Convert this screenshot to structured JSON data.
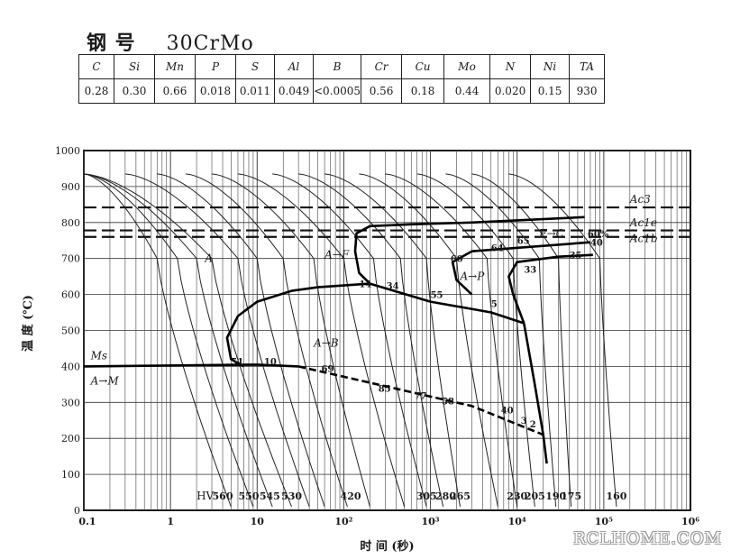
{
  "heading": {
    "label": "钢 号",
    "grade": "30CrMo"
  },
  "composition": {
    "headers": [
      "C",
      "Si",
      "Mn",
      "P",
      "S",
      "Al",
      "B",
      "Cr",
      "Cu",
      "Mo",
      "N",
      "Ni",
      "TA"
    ],
    "values": [
      "0.28",
      "0.30",
      "0.66",
      "0.018",
      "0.011",
      "0.049",
      "<0.0005",
      "0.56",
      "0.18",
      "0.44",
      "0.020",
      "0.15",
      "930"
    ]
  },
  "chart_data": {
    "type": "line",
    "xlabel": "时 间 (秒)",
    "ylabel": "温 度 (℃)",
    "x_scale": "log",
    "xlim": [
      0.1,
      1000000
    ],
    "ylim": [
      0,
      1000
    ],
    "x_tick_labels": [
      "0.1",
      "1",
      "10",
      "10²",
      "10³",
      "10⁴",
      "10⁵",
      "10⁶"
    ],
    "x_tick_values": [
      0.1,
      1,
      10,
      100,
      1000,
      10000,
      100000,
      1000000
    ],
    "y_ticks": [
      0,
      100,
      200,
      300,
      400,
      500,
      600,
      700,
      800,
      900,
      1000
    ],
    "grid": true,
    "critical_lines": [
      {
        "name": "Ac3",
        "y": 842
      },
      {
        "name": "Ac1e",
        "y": 778
      },
      {
        "name": "Ac1b",
        "y": 760
      }
    ],
    "ms_temperature": 400,
    "transformation_curves": [
      {
        "name": "ferrite start",
        "points": [
          [
            60000,
            815
          ],
          [
            3000,
            800
          ],
          [
            600,
            795
          ],
          [
            200,
            790
          ],
          [
            140,
            770
          ],
          [
            135,
            720
          ],
          [
            150,
            660
          ],
          [
            200,
            630
          ]
        ]
      },
      {
        "name": "pearlite start",
        "points": [
          [
            70000,
            745
          ],
          [
            3000,
            720
          ],
          [
            1800,
            690
          ],
          [
            2000,
            640
          ],
          [
            3000,
            600
          ]
        ]
      },
      {
        "name": "pearlite finish",
        "points": [
          [
            75000,
            710
          ],
          [
            30000,
            705
          ],
          [
            10000,
            690
          ],
          [
            8000,
            650
          ],
          [
            9000,
            600
          ],
          [
            12000,
            520
          ]
        ]
      },
      {
        "name": "bainite start",
        "points": [
          [
            200,
            630
          ],
          [
            100,
            625
          ],
          [
            50,
            620
          ],
          [
            25,
            610
          ],
          [
            10,
            580
          ],
          [
            6,
            540
          ],
          [
            4.5,
            480
          ],
          [
            5,
            420
          ],
          [
            7,
            400
          ]
        ]
      },
      {
        "name": "ferrite finish",
        "points": [
          [
            200,
            630
          ],
          [
            1000,
            580
          ],
          [
            5000,
            550
          ],
          [
            12000,
            520
          ]
        ]
      },
      {
        "name": "martensite start (Ms)",
        "points": [
          [
            0.1,
            400
          ],
          [
            10,
            405
          ],
          [
            30,
            400
          ]
        ]
      },
      {
        "name": "bainite finish",
        "points": [
          [
            30,
            400
          ],
          [
            300,
            345
          ],
          [
            3000,
            290
          ],
          [
            20000,
            210
          ]
        ]
      },
      {
        "name": "end line",
        "points": [
          [
            12000,
            520
          ],
          [
            16000,
            350
          ],
          [
            20000,
            210
          ],
          [
            22000,
            130
          ]
        ]
      }
    ],
    "hardness_label": "HV",
    "hardness_values": [
      {
        "t": 4,
        "hv": "560"
      },
      {
        "t": 8,
        "hv": "550"
      },
      {
        "t": 14,
        "hv": "545"
      },
      {
        "t": 25,
        "hv": "530"
      },
      {
        "t": 120,
        "hv": "420"
      },
      {
        "t": 900,
        "hv": "305"
      },
      {
        "t": 1500,
        "hv": "280"
      },
      {
        "t": 2200,
        "hv": "265"
      },
      {
        "t": 10000,
        "hv": "230"
      },
      {
        "t": 16000,
        "hv": "205"
      },
      {
        "t": 28000,
        "hv": "190"
      },
      {
        "t": 42000,
        "hv": "175"
      },
      {
        "t": 140000,
        "hv": "160"
      }
    ],
    "region_labels": [
      {
        "text": "Ms",
        "t": 0.12,
        "temp": 420
      },
      {
        "text": "A→M",
        "t": 0.12,
        "temp": 350
      },
      {
        "text": "A",
        "t": 2.5,
        "temp": 690
      },
      {
        "text": "A→F",
        "t": 60,
        "temp": 700
      },
      {
        "text": "A→B",
        "t": 45,
        "temp": 455
      },
      {
        "text": "A→P",
        "t": 2200,
        "temp": 640
      },
      {
        "text": "F→C",
        "t": 18000,
        "temp": 760
      },
      {
        "text": "Ac3",
        "t": 200000,
        "temp": 855
      },
      {
        "text": "Ac1e",
        "t": 200000,
        "temp": 790
      },
      {
        "text": "Ac1b",
        "t": 200000,
        "temp": 745
      }
    ],
    "percentages": [
      {
        "text": "51",
        "t": 5,
        "temp": 405
      },
      {
        "text": "10",
        "t": 12,
        "temp": 405
      },
      {
        "text": "69",
        "t": 55,
        "temp": 385
      },
      {
        "text": "14",
        "t": 150,
        "temp": 620
      },
      {
        "text": "34",
        "t": 310,
        "temp": 615
      },
      {
        "text": "85",
        "t": 250,
        "temp": 330
      },
      {
        "text": "77",
        "t": 650,
        "temp": 310
      },
      {
        "text": "58",
        "t": 1350,
        "temp": 295
      },
      {
        "text": "55",
        "t": 1000,
        "temp": 590
      },
      {
        "text": "5",
        "t": 5000,
        "temp": 565
      },
      {
        "text": "60",
        "t": 1700,
        "temp": 690
      },
      {
        "text": "64",
        "t": 5000,
        "temp": 720
      },
      {
        "text": "65",
        "t": 10000,
        "temp": 740
      },
      {
        "text": "33",
        "t": 12000,
        "temp": 660
      },
      {
        "text": "35",
        "t": 40000,
        "temp": 700
      },
      {
        "text": "40",
        "t": 70000,
        "temp": 735
      },
      {
        "text": "60%",
        "t": 65000,
        "temp": 760
      },
      {
        "text": "40",
        "t": 6500,
        "temp": 270
      },
      {
        "text": "3",
        "t": 11000,
        "temp": 240
      },
      {
        "text": "2",
        "t": 14000,
        "temp": 230
      }
    ],
    "cooling_curves": [
      {
        "t0": 0.1,
        "t_half": 0.7,
        "t_end": 5
      },
      {
        "t0": 0.1,
        "t_half": 1.2,
        "t_end": 9
      },
      {
        "t0": 0.1,
        "t_half": 2.0,
        "t_end": 15
      },
      {
        "t0": 0.1,
        "t_half": 3.0,
        "t_end": 25
      },
      {
        "t0": 0.3,
        "t_half": 6.0,
        "t_end": 40
      },
      {
        "t0": 0.7,
        "t_half": 10,
        "t_end": 60
      },
      {
        "t0": 1.5,
        "t_half": 20,
        "t_end": 110
      },
      {
        "t0": 3,
        "t_half": 45,
        "t_end": 200
      },
      {
        "t0": 6,
        "t_half": 100,
        "t_end": 500
      },
      {
        "t0": 15,
        "t_half": 220,
        "t_end": 900
      },
      {
        "t0": 30,
        "t_half": 450,
        "t_end": 1400
      },
      {
        "t0": 60,
        "t_half": 900,
        "t_end": 2200
      },
      {
        "t0": 150,
        "t_half": 2000,
        "t_end": 6000
      },
      {
        "t0": 300,
        "t_half": 4500,
        "t_end": 10000
      },
      {
        "t0": 700,
        "t_half": 9000,
        "t_end": 16000
      },
      {
        "t0": 1500,
        "t_half": 18000,
        "t_end": 28000
      },
      {
        "t0": 3000,
        "t_half": 30000,
        "t_end": 42000
      },
      {
        "t0": 8000,
        "t_half": 90000,
        "t_end": 140000
      }
    ]
  },
  "watermark": "RCLHOME.COM"
}
